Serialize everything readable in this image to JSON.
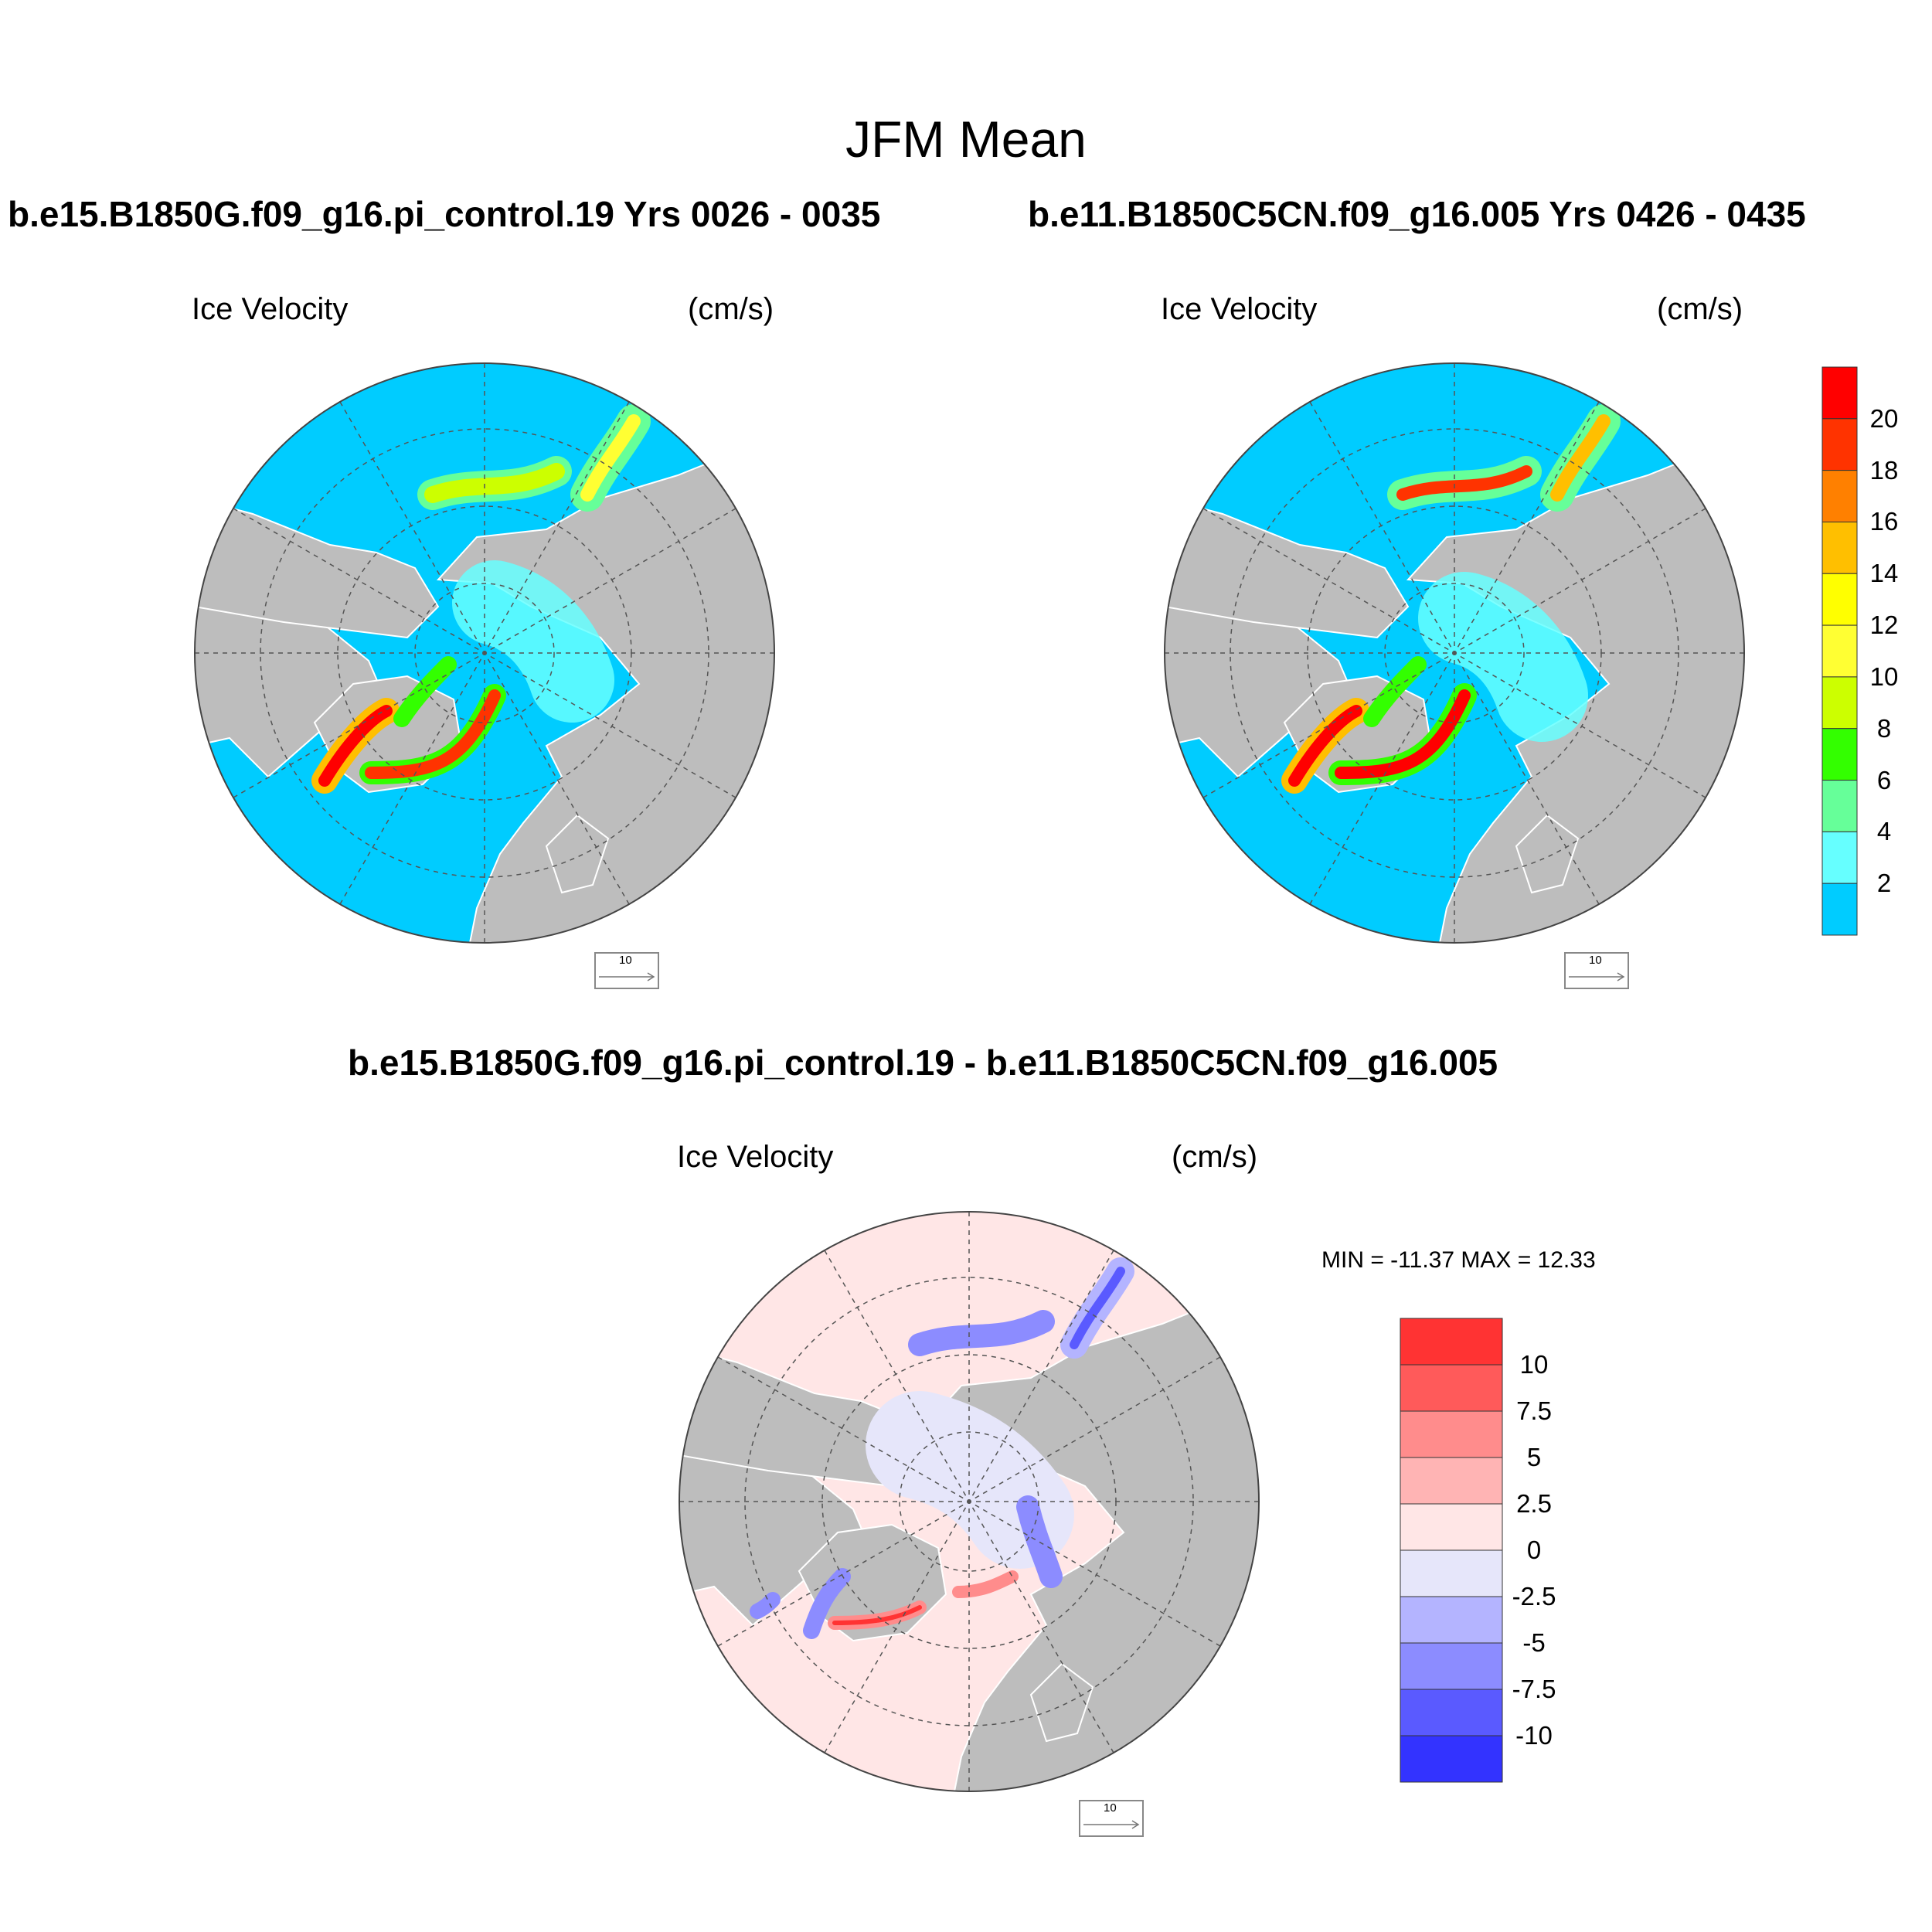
{
  "main_title": "JFM Mean",
  "panels": [
    {
      "case_title": "b.e15.B1850G.f09_g16.pi_control.19  Yrs 0026 - 0035",
      "left_label": "Ice Velocity",
      "right_label": "(cm/s)",
      "ref_vector": "10"
    },
    {
      "case_title": "b.e11.B1850C5CN.f09_g16.005  Yrs 0426 - 0435",
      "left_label": "Ice Velocity",
      "right_label": "(cm/s)",
      "ref_vector": "10"
    },
    {
      "case_title": "b.e15.B1850G.f09_g16.pi_control.19 - b.e11.B1850C5CN.f09_g16.005",
      "left_label": "Ice Velocity",
      "right_label": "(cm/s)",
      "ref_vector": "10",
      "minmax": "MIN = -11.37 MAX =  12.33"
    }
  ],
  "colorbar_top": {
    "labels": [
      "20",
      "18",
      "16",
      "14",
      "12",
      "10",
      "8",
      "6",
      "4",
      "2"
    ],
    "colors": [
      "#ff0000",
      "#ff3300",
      "#ff8000",
      "#ffbf00",
      "#ffff00",
      "#ffff33",
      "#ccff00",
      "#33ff00",
      "#66ff99",
      "#66ffff",
      "#00ccff"
    ]
  },
  "colorbar_bottom": {
    "labels": [
      "10",
      "7.5",
      "5",
      "2.5",
      "0",
      "-2.5",
      "-5",
      "-7.5",
      "-10"
    ],
    "colors": [
      "#ff3333",
      "#ff5a5a",
      "#ff8c8c",
      "#ffb4b4",
      "#ffe6e6",
      "#e6e6fa",
      "#b4b4ff",
      "#8c8cff",
      "#5a5aff",
      "#3333ff"
    ]
  },
  "map_colors": {
    "ocean": "#00ccff",
    "land": "#bdbdbd",
    "diff_ocean": "#ffe6e6",
    "diff_neg": "#e6e6fa"
  }
}
